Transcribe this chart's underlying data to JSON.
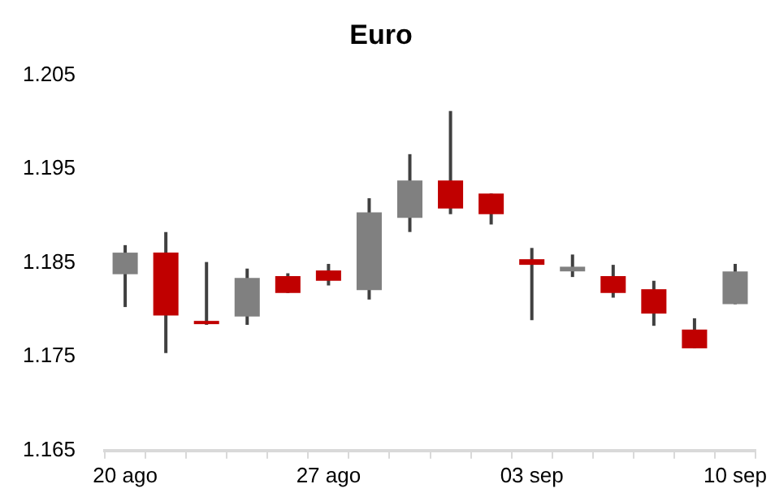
{
  "chart_data": {
    "type": "candlestick",
    "title": "Euro",
    "categories": [
      "20 ago",
      null,
      null,
      null,
      null,
      "27 ago",
      null,
      null,
      null,
      null,
      "03 sep",
      null,
      null,
      null,
      null,
      "10 sep"
    ],
    "ohlc": [
      [
        1.1838,
        1.1869,
        1.1803,
        1.1861
      ],
      [
        1.1861,
        1.1883,
        1.1754,
        1.1794
      ],
      [
        1.1788,
        1.1851,
        1.1784,
        1.1785
      ],
      [
        1.1793,
        1.1844,
        1.1784,
        1.1834
      ],
      [
        1.1836,
        1.1839,
        1.1818,
        1.1818
      ],
      [
        1.1842,
        1.1849,
        1.1826,
        1.1831
      ],
      [
        1.1821,
        1.1919,
        1.1811,
        1.1904
      ],
      [
        1.1898,
        1.1966,
        1.1883,
        1.1938
      ],
      [
        1.1938,
        1.2012,
        1.1902,
        1.1908
      ],
      [
        1.1924,
        1.1924,
        1.1891,
        1.1902
      ],
      [
        1.1854,
        1.1866,
        1.1789,
        1.1848
      ],
      [
        1.1841,
        1.1859,
        1.1835,
        1.1846
      ],
      [
        1.1836,
        1.1848,
        1.1813,
        1.1818
      ],
      [
        1.1822,
        1.1831,
        1.1783,
        1.1796
      ],
      [
        1.1779,
        1.1791,
        1.1759,
        1.1759
      ],
      [
        1.1806,
        1.1849,
        1.1806,
        1.1841
      ]
    ],
    "colors": [
      "#808080",
      "#c00000",
      "#c00000",
      "#808080",
      "#c00000",
      "#c00000",
      "#808080",
      "#808080",
      "#c00000",
      "#c00000",
      "#c00000",
      "#808080",
      "#c00000",
      "#c00000",
      "#c00000",
      "#808080"
    ],
    "ylim": [
      1.165,
      1.205
    ],
    "yticks": [
      1.165,
      1.175,
      1.185,
      1.195,
      1.205
    ],
    "grid": false,
    "legend": false
  }
}
